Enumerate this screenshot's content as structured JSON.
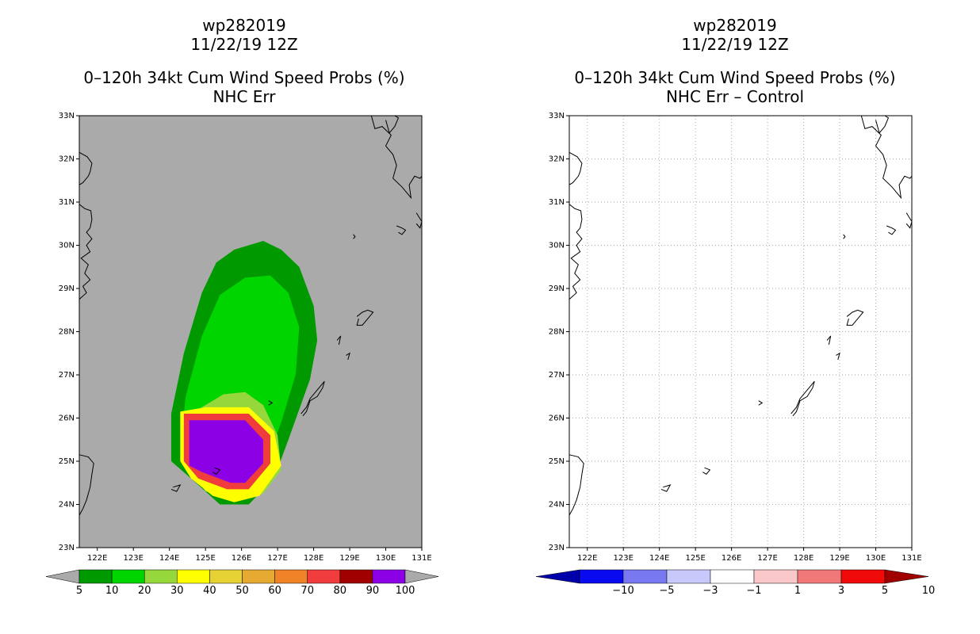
{
  "left": {
    "title_lines": [
      "wp282019",
      "11/22/19 12Z",
      "0–120h 34kt Cum Wind Speed Probs (%)",
      "NHC Err"
    ]
  },
  "right": {
    "title_lines": [
      "wp282019",
      "11/22/19 12Z",
      "0–120h 34kt Cum Wind Speed Probs (%)",
      "NHC Err – Control"
    ]
  },
  "chart_data": [
    {
      "type": "heatmap",
      "title": "wp282019 11/22/19 12Z 0-120h 34kt Cum Wind Speed Probs (%) NHC Err",
      "xlabel": "",
      "ylabel": "",
      "xlim": [
        121.5,
        131
      ],
      "ylim": [
        23,
        33
      ],
      "x_ticks": [
        "122E",
        "123E",
        "124E",
        "125E",
        "126E",
        "127E",
        "128E",
        "129E",
        "130E",
        "131E"
      ],
      "y_ticks": [
        "23N",
        "24N",
        "25N",
        "26N",
        "27N",
        "28N",
        "29N",
        "30N",
        "31N",
        "32N",
        "33N"
      ],
      "grid": false,
      "background_color": "#aaaaaa",
      "colorbar": {
        "labels": [
          "5",
          "10",
          "20",
          "30",
          "40",
          "50",
          "60",
          "70",
          "80",
          "90",
          "100"
        ],
        "colors": [
          "#009a00",
          "#00d500",
          "#96d83c",
          "#ffff00",
          "#e6d232",
          "#e6aa32",
          "#f08228",
          "#f03c3c",
          "#a00000",
          "#8c00e6"
        ]
      },
      "probability_contours": [
        {
          "level": 5,
          "polygon": [
            [
              124.05,
              25.0
            ],
            [
              124.05,
              26.1
            ],
            [
              124.4,
              27.5
            ],
            [
              124.9,
              28.9
            ],
            [
              125.3,
              29.6
            ],
            [
              125.8,
              29.9
            ],
            [
              126.6,
              30.1
            ],
            [
              127.1,
              29.9
            ],
            [
              127.6,
              29.5
            ],
            [
              128.0,
              28.6
            ],
            [
              128.1,
              27.8
            ],
            [
              127.9,
              26.9
            ],
            [
              127.3,
              25.5
            ],
            [
              126.9,
              24.6
            ],
            [
              126.2,
              24.0
            ],
            [
              125.4,
              24.0
            ],
            [
              124.6,
              24.6
            ]
          ]
        },
        {
          "level": 10,
          "polygon": [
            [
              124.3,
              25.3
            ],
            [
              124.45,
              26.5
            ],
            [
              124.9,
              27.9
            ],
            [
              125.4,
              28.85
            ],
            [
              126.1,
              29.25
            ],
            [
              126.8,
              29.3
            ],
            [
              127.3,
              28.9
            ],
            [
              127.6,
              28.1
            ],
            [
              127.5,
              27.0
            ],
            [
              127.1,
              25.9
            ],
            [
              126.7,
              25.0
            ],
            [
              126.1,
              24.45
            ],
            [
              125.4,
              24.4
            ],
            [
              124.8,
              24.8
            ]
          ]
        },
        {
          "level": 20,
          "polygon": [
            [
              124.4,
              25.0
            ],
            [
              124.4,
              25.95
            ],
            [
              124.8,
              26.2
            ],
            [
              125.5,
              26.55
            ],
            [
              126.1,
              26.6
            ],
            [
              126.6,
              26.3
            ],
            [
              127.0,
              25.6
            ],
            [
              127.1,
              24.8
            ],
            [
              126.6,
              24.25
            ],
            [
              125.8,
              24.1
            ],
            [
              125.0,
              24.3
            ]
          ]
        },
        {
          "level": 30,
          "polygon": [
            [
              124.3,
              25.0
            ],
            [
              124.3,
              26.15
            ],
            [
              125.0,
              26.25
            ],
            [
              126.2,
              26.25
            ],
            [
              126.9,
              25.7
            ],
            [
              127.1,
              24.9
            ],
            [
              126.5,
              24.2
            ],
            [
              125.8,
              24.05
            ],
            [
              125.2,
              24.2
            ],
            [
              124.6,
              24.6
            ]
          ]
        },
        {
          "level": 70,
          "polygon": [
            [
              124.4,
              25.0
            ],
            [
              124.4,
              26.1
            ],
            [
              126.2,
              26.1
            ],
            [
              126.8,
              25.6
            ],
            [
              126.8,
              24.95
            ],
            [
              126.2,
              24.35
            ],
            [
              125.6,
              24.35
            ],
            [
              124.8,
              24.6
            ]
          ]
        },
        {
          "level": 90,
          "polygon": [
            [
              124.55,
              24.9
            ],
            [
              124.55,
              25.95
            ],
            [
              126.1,
              25.95
            ],
            [
              126.6,
              25.5
            ],
            [
              126.6,
              24.95
            ],
            [
              126.1,
              24.5
            ],
            [
              125.7,
              24.5
            ],
            [
              124.9,
              24.75
            ]
          ]
        }
      ]
    },
    {
      "type": "heatmap",
      "title": "wp282019 11/22/19 12Z 0-120h 34kt Cum Wind Speed Probs (%) NHC Err - Control",
      "xlabel": "",
      "ylabel": "",
      "xlim": [
        121.5,
        131
      ],
      "ylim": [
        23,
        33
      ],
      "x_ticks": [
        "122E",
        "123E",
        "124E",
        "125E",
        "126E",
        "127E",
        "128E",
        "129E",
        "130E",
        "131E"
      ],
      "y_ticks": [
        "23N",
        "24N",
        "25N",
        "26N",
        "27N",
        "28N",
        "29N",
        "30N",
        "31N",
        "32N",
        "33N"
      ],
      "grid": true,
      "background_color": "#ffffff",
      "colorbar": {
        "labels": [
          "−10",
          "−5",
          "−3",
          "−1",
          "1",
          "3",
          "5",
          "10"
        ],
        "colors": [
          "#0000aa",
          "#0a0af0",
          "#7878f0",
          "#c8c8fa",
          "#ffffff",
          "#fac8c8",
          "#f07878",
          "#f00a0a",
          "#a00000"
        ]
      },
      "probability_contours": []
    }
  ]
}
